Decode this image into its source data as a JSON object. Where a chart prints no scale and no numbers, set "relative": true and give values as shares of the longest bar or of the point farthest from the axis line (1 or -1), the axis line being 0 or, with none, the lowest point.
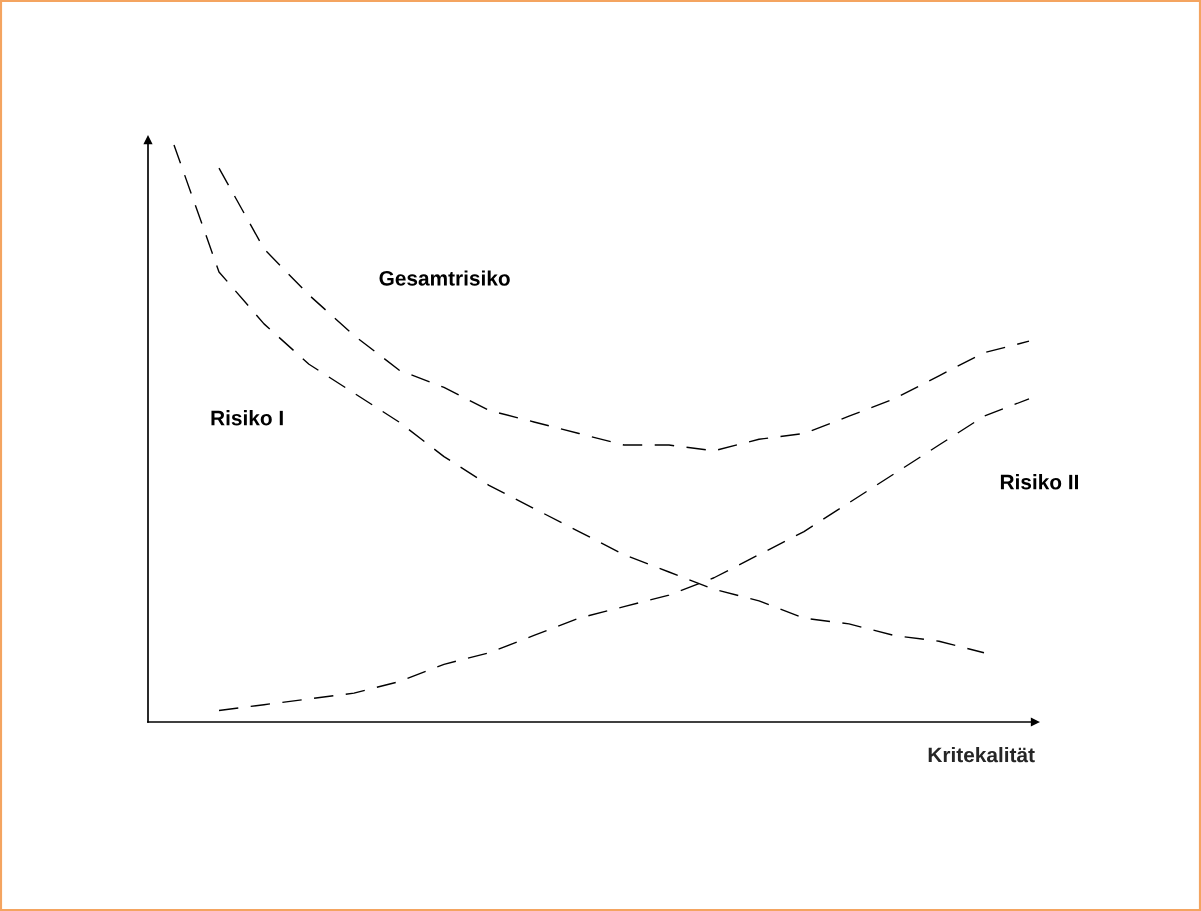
{
  "chart_data": {
    "type": "line",
    "relative": true,
    "xlabel": "Kritekalität",
    "line_style": "dashed",
    "marker": "none",
    "legend": false,
    "categories": [
      null,
      null,
      null,
      null,
      null,
      null,
      null,
      null,
      null,
      null,
      null,
      null,
      null,
      null,
      null,
      null,
      null,
      null,
      null,
      null
    ],
    "series": [
      {
        "name": "Risiko I",
        "color": "#000000",
        "values": [
          1,
          0.78,
          0.69,
          0.62,
          0.57,
          0.52,
          0.46,
          0.41,
          0.37,
          0.33,
          0.29,
          0.26,
          0.23,
          0.21,
          0.18,
          0.17,
          0.15,
          0.14,
          0.12,
          null
        ]
      },
      {
        "name": "Gesamtrisiko",
        "color": "#000000",
        "values": [
          null,
          0.96,
          0.82,
          0.74,
          0.67,
          0.61,
          0.58,
          0.54,
          0.52,
          0.5,
          0.48,
          0.48,
          0.47,
          0.49,
          0.5,
          0.53,
          0.56,
          0.6,
          0.64,
          0.66
        ]
      },
      {
        "name": "Risiko II",
        "color": "#000000",
        "values": [
          null,
          0.02,
          0.03,
          0.04,
          0.05,
          0.07,
          0.1,
          0.12,
          0.15,
          0.18,
          0.2,
          0.22,
          0.25,
          0.29,
          0.33,
          0.38,
          0.43,
          0.48,
          0.53,
          0.56
        ]
      }
    ]
  }
}
